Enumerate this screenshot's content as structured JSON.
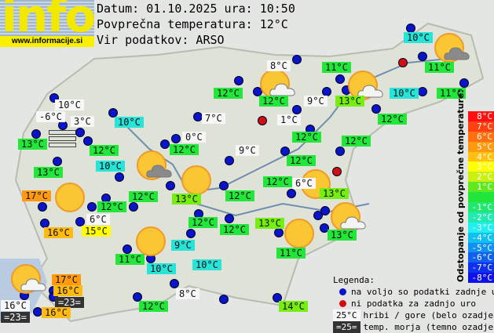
{
  "logo": {
    "text": "info",
    "url": "www.informacije.si"
  },
  "header": {
    "date_line": "Datum: 01.10.2025 ura: 10:50",
    "avg_line": "Povprečna temperatura: 12°C",
    "source_line": "Vir podatkov: ARSO"
  },
  "colors": {
    "green": "#22e63a",
    "lime": "#77ee11",
    "cyan": "#27e3d8",
    "orange": "#ff9a10",
    "amber": "#ffbb11",
    "yellow": "#ffff00",
    "white": "#f7f7f7",
    "dark": "#333333",
    "station_dot": "#0a14c8",
    "no_data_dot": "#d01010"
  },
  "stations": [
    {
      "t": "10°C",
      "c": "cyan"
    },
    {
      "t": "8°C",
      "c": "white"
    },
    {
      "t": "11°C",
      "c": "green"
    },
    {
      "t": "11°C",
      "c": "green"
    },
    {
      "t": "12°C",
      "c": "green"
    },
    {
      "t": "12°C",
      "c": "green"
    },
    {
      "t": "9°C",
      "c": "white"
    },
    {
      "t": "13°C",
      "c": "lime"
    },
    {
      "t": "10°C",
      "c": "cyan"
    },
    {
      "t": "11°C",
      "c": "green"
    },
    {
      "t": "10°C",
      "c": "white"
    },
    {
      "t": "-6°C",
      "c": "white"
    },
    {
      "t": "3°C",
      "c": "white"
    },
    {
      "t": "10°C",
      "c": "cyan"
    },
    {
      "t": "7°C",
      "c": "white"
    },
    {
      "t": "1°C",
      "c": "white"
    },
    {
      "t": "12°C",
      "c": "green"
    },
    {
      "t": "13°C",
      "c": "green"
    },
    {
      "t": "12°C",
      "c": "green"
    },
    {
      "t": "0°C",
      "c": "white"
    },
    {
      "t": "12°C",
      "c": "green"
    },
    {
      "t": "12°C",
      "c": "green"
    },
    {
      "t": "12°C",
      "c": "green"
    },
    {
      "t": "9°C",
      "c": "white"
    },
    {
      "t": "10°C",
      "c": "cyan"
    },
    {
      "t": "12°C",
      "c": "green"
    },
    {
      "t": "13°C",
      "c": "green"
    },
    {
      "t": "12°C",
      "c": "green"
    },
    {
      "t": "6°C",
      "c": "white"
    },
    {
      "t": "13°C",
      "c": "lime"
    },
    {
      "t": "17°C",
      "c": "orange"
    },
    {
      "t": "12°C",
      "c": "green"
    },
    {
      "t": "12°C",
      "c": "green"
    },
    {
      "t": "13°C",
      "c": "lime"
    },
    {
      "t": "12°C",
      "c": "green"
    },
    {
      "t": "13°C",
      "c": "green"
    },
    {
      "t": "6°C",
      "c": "white"
    },
    {
      "t": "16°C",
      "c": "amber"
    },
    {
      "t": "15°C",
      "c": "yellow"
    },
    {
      "t": "12°C",
      "c": "green"
    },
    {
      "t": "12°C",
      "c": "green"
    },
    {
      "t": "13°C",
      "c": "lime"
    },
    {
      "t": "11°C",
      "c": "green"
    },
    {
      "t": "9°C",
      "c": "cyan"
    },
    {
      "t": "11°C",
      "c": "green"
    },
    {
      "t": "10°C",
      "c": "cyan"
    },
    {
      "t": "10°C",
      "c": "cyan"
    },
    {
      "t": "17°C",
      "c": "orange"
    },
    {
      "t": "16°C",
      "c": "amber"
    },
    {
      "t": "=23=",
      "c": "dark"
    },
    {
      "t": "16°C",
      "c": "white"
    },
    {
      "t": "=23=",
      "c": "dark"
    },
    {
      "t": "16°C",
      "c": "amber"
    },
    {
      "t": "12°C",
      "c": "green"
    },
    {
      "t": "8°C",
      "c": "white"
    },
    {
      "t": "14°C",
      "c": "lime"
    }
  ],
  "scale": {
    "title": "Odstopanje od povprečne temperature:",
    "steps": [
      {
        "t": "8°C",
        "color": "#ff1010"
      },
      {
        "t": "7°C",
        "color": "#ff4010"
      },
      {
        "t": "6°C",
        "color": "#ff7010"
      },
      {
        "t": "5°C",
        "color": "#ff9a10"
      },
      {
        "t": "4°C",
        "color": "#ffc010"
      },
      {
        "t": "3°C",
        "color": "#ffff00"
      },
      {
        "t": "2°C",
        "color": "#c8f010"
      },
      {
        "t": "1°C",
        "color": "#60e820"
      },
      {
        "t": "",
        "color": "#22e63a"
      },
      {
        "t": "-1°C",
        "color": "#20e870"
      },
      {
        "t": "-2°C",
        "color": "#20eab0"
      },
      {
        "t": "-3°C",
        "color": "#22f0f0"
      },
      {
        "t": "-4°C",
        "color": "#10c0f0"
      },
      {
        "t": "-5°C",
        "color": "#1090f0"
      },
      {
        "t": "-6°C",
        "color": "#1060f0"
      },
      {
        "t": "-7°C",
        "color": "#1030f0"
      },
      {
        "t": "-8°C",
        "color": "#1010e8"
      }
    ]
  },
  "legend": {
    "title": "Legenda:",
    "available": "na voljo so podatki zadnje ure",
    "no_data": "ni podatka za zadnjo uro",
    "mountain_sample": "25°C",
    "mountain": "hribi / gore (belo ozadje)",
    "sea_sample": "=25=",
    "sea": "temp. morja (temno ozadje)"
  }
}
